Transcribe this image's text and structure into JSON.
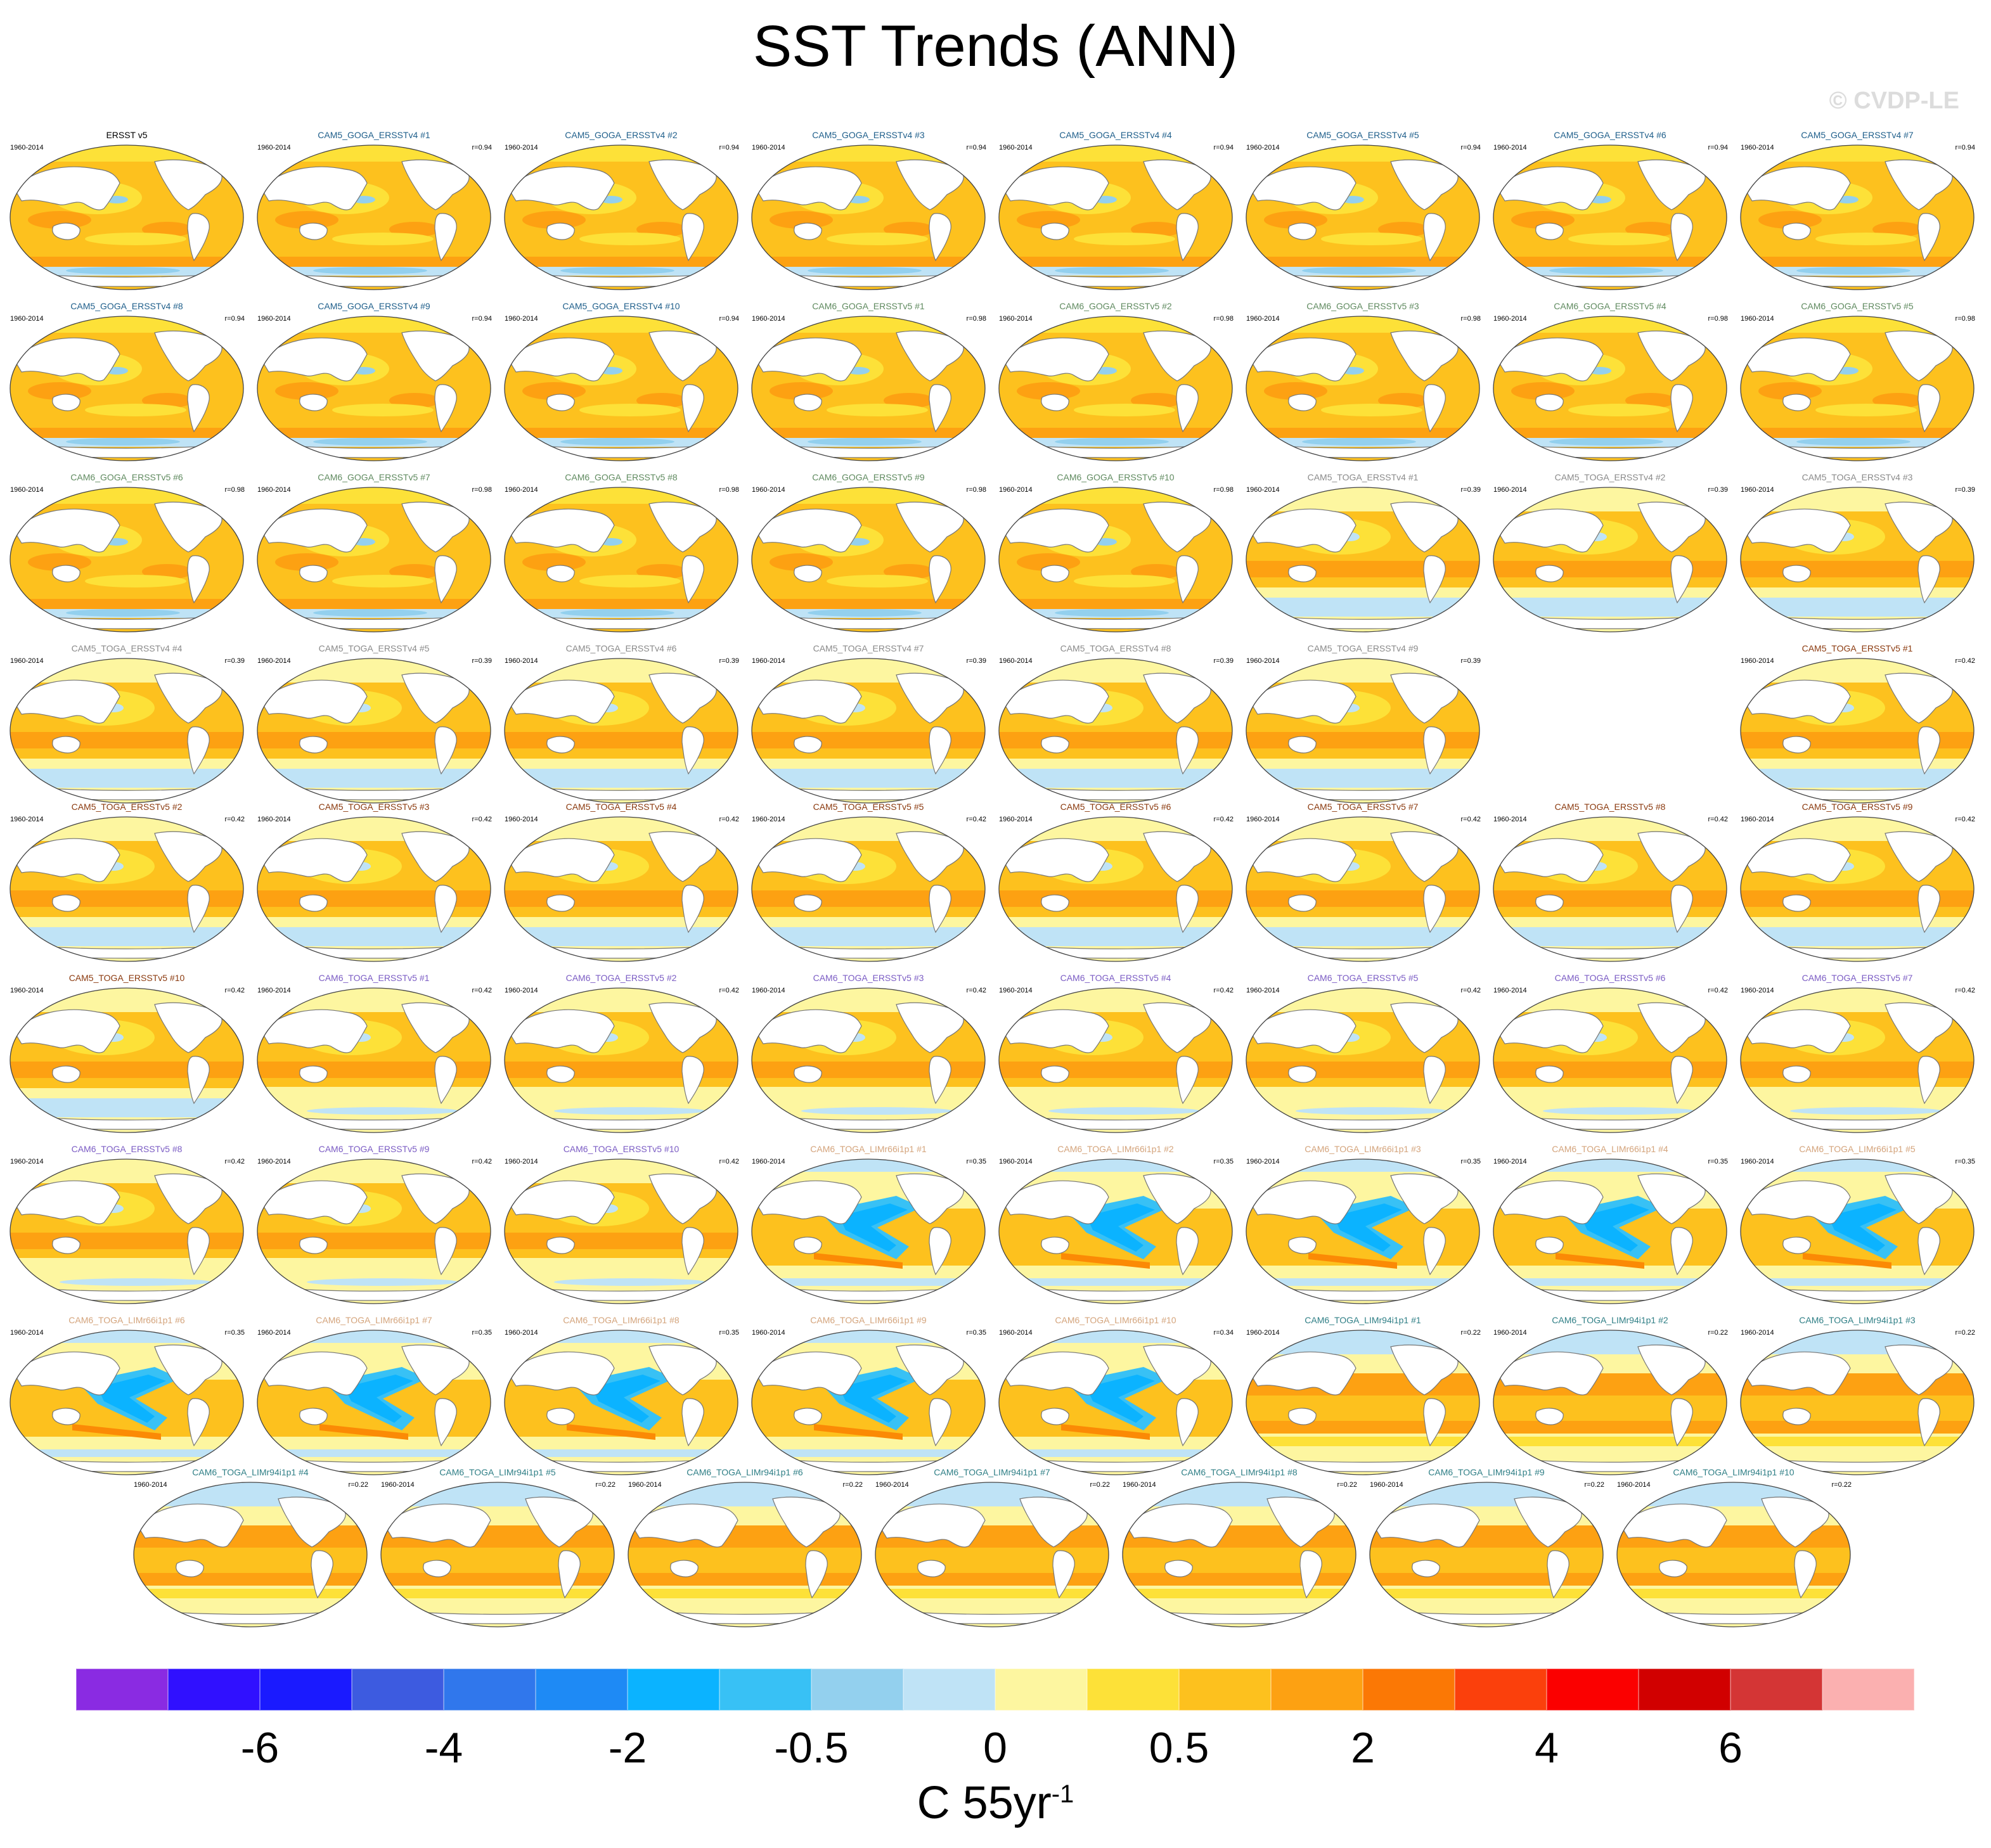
{
  "title": "SST Trends (ANN)",
  "copyright": "© CVDP-LE",
  "units": {
    "main": "C 55yr",
    "exponent": "-1"
  },
  "chart_data": {
    "type": "heatmap",
    "title": "SST Trends (ANN)",
    "period": "1960-2014",
    "units": "C 55yr-1",
    "colorbar": {
      "labels": [
        "-6",
        "-4",
        "-2",
        "-0.5",
        "0",
        "0.5",
        "2",
        "4",
        "6"
      ],
      "colors": [
        "#8a2be2",
        "#3010ff",
        "#1a1aff",
        "#3d5be0",
        "#3077ec",
        "#1e8af5",
        "#0bb3ff",
        "#38c1f5",
        "#93d0ee",
        "#bfe3f6",
        "#fdf6a0",
        "#fde138",
        "#fdc11e",
        "#fda112",
        "#fb7805",
        "#fb400c",
        "#fb0000",
        "#d10000",
        "#d43535",
        "#fbb0b0"
      ]
    },
    "panels": [
      {
        "name": "ERSST v5",
        "r": "",
        "group": "obs",
        "pattern": "obs"
      },
      {
        "name": "CAM5_GOGA_ERSSTv4 #1",
        "r": "r=0.94",
        "group": "cam5_goga",
        "pattern": "goga"
      },
      {
        "name": "CAM5_GOGA_ERSSTv4 #2",
        "r": "r=0.94",
        "group": "cam5_goga",
        "pattern": "goga"
      },
      {
        "name": "CAM5_GOGA_ERSSTv4 #3",
        "r": "r=0.94",
        "group": "cam5_goga",
        "pattern": "goga"
      },
      {
        "name": "CAM5_GOGA_ERSSTv4 #4",
        "r": "r=0.94",
        "group": "cam5_goga",
        "pattern": "goga"
      },
      {
        "name": "CAM5_GOGA_ERSSTv4 #5",
        "r": "r=0.94",
        "group": "cam5_goga",
        "pattern": "goga"
      },
      {
        "name": "CAM5_GOGA_ERSSTv4 #6",
        "r": "r=0.94",
        "group": "cam5_goga",
        "pattern": "goga"
      },
      {
        "name": "CAM5_GOGA_ERSSTv4 #7",
        "r": "r=0.94",
        "group": "cam5_goga",
        "pattern": "goga"
      },
      {
        "name": "CAM5_GOGA_ERSSTv4 #8",
        "r": "r=0.94",
        "group": "cam5_goga",
        "pattern": "goga"
      },
      {
        "name": "CAM5_GOGA_ERSSTv4 #9",
        "r": "r=0.94",
        "group": "cam5_goga",
        "pattern": "goga"
      },
      {
        "name": "CAM5_GOGA_ERSSTv4 #10",
        "r": "r=0.94",
        "group": "cam5_goga",
        "pattern": "goga"
      },
      {
        "name": "CAM6_GOGA_ERSSTv5 #1",
        "r": "r=0.98",
        "group": "cam6_goga",
        "pattern": "goga"
      },
      {
        "name": "CAM6_GOGA_ERSSTv5 #2",
        "r": "r=0.98",
        "group": "cam6_goga",
        "pattern": "goga"
      },
      {
        "name": "CAM6_GOGA_ERSSTv5 #3",
        "r": "r=0.98",
        "group": "cam6_goga",
        "pattern": "goga"
      },
      {
        "name": "CAM6_GOGA_ERSSTv5 #4",
        "r": "r=0.98",
        "group": "cam6_goga",
        "pattern": "goga"
      },
      {
        "name": "CAM6_GOGA_ERSSTv5 #5",
        "r": "r=0.98",
        "group": "cam6_goga",
        "pattern": "goga"
      },
      {
        "name": "CAM6_GOGA_ERSSTv5 #6",
        "r": "r=0.98",
        "group": "cam6_goga",
        "pattern": "goga"
      },
      {
        "name": "CAM6_GOGA_ERSSTv5 #7",
        "r": "r=0.98",
        "group": "cam6_goga",
        "pattern": "goga"
      },
      {
        "name": "CAM6_GOGA_ERSSTv5 #8",
        "r": "r=0.98",
        "group": "cam6_goga",
        "pattern": "goga"
      },
      {
        "name": "CAM6_GOGA_ERSSTv5 #9",
        "r": "r=0.98",
        "group": "cam6_goga",
        "pattern": "goga"
      },
      {
        "name": "CAM6_GOGA_ERSSTv5 #10",
        "r": "r=0.98",
        "group": "cam6_goga",
        "pattern": "goga"
      },
      {
        "name": "CAM5_TOGA_ERSSTv4 #1",
        "r": "r=0.39",
        "group": "cam5_toga_v4",
        "pattern": "toga"
      },
      {
        "name": "CAM5_TOGA_ERSSTv4 #2",
        "r": "r=0.39",
        "group": "cam5_toga_v4",
        "pattern": "toga"
      },
      {
        "name": "CAM5_TOGA_ERSSTv4 #3",
        "r": "r=0.39",
        "group": "cam5_toga_v4",
        "pattern": "toga"
      },
      {
        "name": "CAM5_TOGA_ERSSTv4 #4",
        "r": "r=0.39",
        "group": "cam5_toga_v4",
        "pattern": "toga"
      },
      {
        "name": "CAM5_TOGA_ERSSTv4 #5",
        "r": "r=0.39",
        "group": "cam5_toga_v4",
        "pattern": "toga"
      },
      {
        "name": "CAM5_TOGA_ERSSTv4 #6",
        "r": "r=0.39",
        "group": "cam5_toga_v4",
        "pattern": "toga"
      },
      {
        "name": "CAM5_TOGA_ERSSTv4 #7",
        "r": "r=0.39",
        "group": "cam5_toga_v4",
        "pattern": "toga"
      },
      {
        "name": "CAM5_TOGA_ERSSTv4 #8",
        "r": "r=0.39",
        "group": "cam5_toga_v4",
        "pattern": "toga"
      },
      {
        "name": "CAM5_TOGA_ERSSTv4 #9",
        "r": "r=0.39",
        "group": "cam5_toga_v4",
        "pattern": "toga"
      },
      {
        "name": "CAM5_TOGA_ERSSTv5 #1",
        "r": "r=0.42",
        "group": "cam5_toga_v5",
        "pattern": "toga"
      },
      {
        "name": "CAM5_TOGA_ERSSTv5 #2",
        "r": "r=0.42",
        "group": "cam5_toga_v5",
        "pattern": "toga"
      },
      {
        "name": "CAM5_TOGA_ERSSTv5 #3",
        "r": "r=0.42",
        "group": "cam5_toga_v5",
        "pattern": "toga"
      },
      {
        "name": "CAM5_TOGA_ERSSTv5 #4",
        "r": "r=0.42",
        "group": "cam5_toga_v5",
        "pattern": "toga"
      },
      {
        "name": "CAM5_TOGA_ERSSTv5 #5",
        "r": "r=0.42",
        "group": "cam5_toga_v5",
        "pattern": "toga"
      },
      {
        "name": "CAM5_TOGA_ERSSTv5 #6",
        "r": "r=0.42",
        "group": "cam5_toga_v5",
        "pattern": "toga"
      },
      {
        "name": "CAM5_TOGA_ERSSTv5 #7",
        "r": "r=0.42",
        "group": "cam5_toga_v5",
        "pattern": "toga"
      },
      {
        "name": "CAM5_TOGA_ERSSTv5 #8",
        "r": "r=0.42",
        "group": "cam5_toga_v5",
        "pattern": "toga"
      },
      {
        "name": "CAM5_TOGA_ERSSTv5 #9",
        "r": "r=0.42",
        "group": "cam5_toga_v5",
        "pattern": "toga"
      },
      {
        "name": "CAM5_TOGA_ERSSTv5 #10",
        "r": "r=0.42",
        "group": "cam5_toga_v5",
        "pattern": "toga"
      },
      {
        "name": "CAM6_TOGA_ERSSTv5 #1",
        "r": "r=0.42",
        "group": "cam6_toga",
        "pattern": "toga6"
      },
      {
        "name": "CAM6_TOGA_ERSSTv5 #2",
        "r": "r=0.42",
        "group": "cam6_toga",
        "pattern": "toga6"
      },
      {
        "name": "CAM6_TOGA_ERSSTv5 #3",
        "r": "r=0.42",
        "group": "cam6_toga",
        "pattern": "toga6"
      },
      {
        "name": "CAM6_TOGA_ERSSTv5 #4",
        "r": "r=0.42",
        "group": "cam6_toga",
        "pattern": "toga6"
      },
      {
        "name": "CAM6_TOGA_ERSSTv5 #5",
        "r": "r=0.42",
        "group": "cam6_toga",
        "pattern": "toga6"
      },
      {
        "name": "CAM6_TOGA_ERSSTv5 #6",
        "r": "r=0.42",
        "group": "cam6_toga",
        "pattern": "toga6"
      },
      {
        "name": "CAM6_TOGA_ERSSTv5 #7",
        "r": "r=0.42",
        "group": "cam6_toga",
        "pattern": "toga6"
      },
      {
        "name": "CAM6_TOGA_ERSSTv5 #8",
        "r": "r=0.42",
        "group": "cam6_toga",
        "pattern": "toga6"
      },
      {
        "name": "CAM6_TOGA_ERSSTv5 #9",
        "r": "r=0.42",
        "group": "cam6_toga",
        "pattern": "toga6"
      },
      {
        "name": "CAM6_TOGA_ERSSTv5 #10",
        "r": "r=0.42",
        "group": "cam6_toga",
        "pattern": "toga6"
      },
      {
        "name": "CAM6_TOGA_LIMr66i1p1 #1",
        "r": "r=0.35",
        "group": "lim66",
        "pattern": "lim66"
      },
      {
        "name": "CAM6_TOGA_LIMr66i1p1 #2",
        "r": "r=0.35",
        "group": "lim66",
        "pattern": "lim66"
      },
      {
        "name": "CAM6_TOGA_LIMr66i1p1 #3",
        "r": "r=0.35",
        "group": "lim66",
        "pattern": "lim66"
      },
      {
        "name": "CAM6_TOGA_LIMr66i1p1 #4",
        "r": "r=0.35",
        "group": "lim66",
        "pattern": "lim66"
      },
      {
        "name": "CAM6_TOGA_LIMr66i1p1 #5",
        "r": "r=0.35",
        "group": "lim66",
        "pattern": "lim66"
      },
      {
        "name": "CAM6_TOGA_LIMr66i1p1 #6",
        "r": "r=0.35",
        "group": "lim66",
        "pattern": "lim66"
      },
      {
        "name": "CAM6_TOGA_LIMr66i1p1 #7",
        "r": "r=0.35",
        "group": "lim66",
        "pattern": "lim66"
      },
      {
        "name": "CAM6_TOGA_LIMr66i1p1 #8",
        "r": "r=0.35",
        "group": "lim66",
        "pattern": "lim66"
      },
      {
        "name": "CAM6_TOGA_LIMr66i1p1 #9",
        "r": "r=0.35",
        "group": "lim66",
        "pattern": "lim66"
      },
      {
        "name": "CAM6_TOGA_LIMr66i1p1 #10",
        "r": "r=0.34",
        "group": "lim66",
        "pattern": "lim66"
      },
      {
        "name": "CAM6_TOGA_LIMr94i1p1 #1",
        "r": "r=0.22",
        "group": "lim94",
        "pattern": "lim94"
      },
      {
        "name": "CAM6_TOGA_LIMr94i1p1 #2",
        "r": "r=0.22",
        "group": "lim94",
        "pattern": "lim94"
      },
      {
        "name": "CAM6_TOGA_LIMr94i1p1 #3",
        "r": "r=0.22",
        "group": "lim94",
        "pattern": "lim94"
      },
      {
        "name": "CAM6_TOGA_LIMr94i1p1 #4",
        "r": "r=0.22",
        "group": "lim94",
        "pattern": "lim94"
      },
      {
        "name": "CAM6_TOGA_LIMr94i1p1 #5",
        "r": "r=0.22",
        "group": "lim94",
        "pattern": "lim94"
      },
      {
        "name": "CAM6_TOGA_LIMr94i1p1 #6",
        "r": "r=0.22",
        "group": "lim94",
        "pattern": "lim94"
      },
      {
        "name": "CAM6_TOGA_LIMr94i1p1 #7",
        "r": "r=0.22",
        "group": "lim94",
        "pattern": "lim94"
      },
      {
        "name": "CAM6_TOGA_LIMr94i1p1 #8",
        "r": "r=0.22",
        "group": "lim94",
        "pattern": "lim94"
      },
      {
        "name": "CAM6_TOGA_LIMr94i1p1 #9",
        "r": "r=0.22",
        "group": "lim94",
        "pattern": "lim94"
      },
      {
        "name": "CAM6_TOGA_LIMr94i1p1 #10",
        "r": "r=0.22",
        "group": "lim94",
        "pattern": "lim94"
      }
    ],
    "group_colors": {
      "obs": "#000000",
      "cam5_goga": "#1f5f8b",
      "cam6_goga": "#5f8a5f",
      "cam5_toga_v4": "#8a8a8a",
      "cam5_toga_v5": "#8b3a0f",
      "cam6_toga": "#7b5cc4",
      "lim66": "#d4a47c",
      "lim94": "#2f7f86"
    }
  }
}
